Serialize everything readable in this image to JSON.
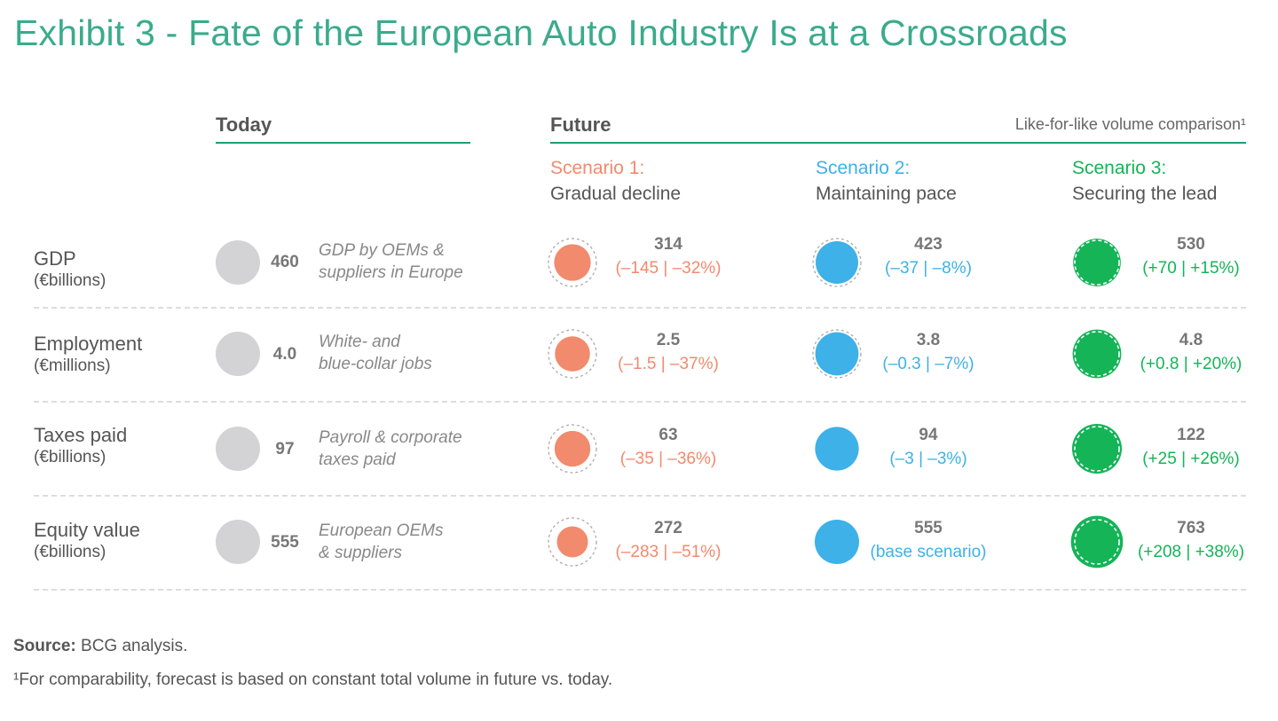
{
  "title": "Exhibit 3 - Fate of the European Auto Industry Is at a Crossroads",
  "headers": {
    "today": "Today",
    "future": "Future",
    "comparison_note": "Like-for-like volume comparison¹"
  },
  "scenarios": [
    {
      "label": "Scenario 1:",
      "name": "Gradual decline",
      "color": "#f28a6d"
    },
    {
      "label": "Scenario 2:",
      "name": "Maintaining pace",
      "color": "#3db1e8"
    },
    {
      "label": "Scenario 3:",
      "name": "Securing the lead",
      "color": "#14b457"
    }
  ],
  "colors": {
    "today_bubble": "#d3d3d5",
    "title": "#3bab8c",
    "rule": "#1b9e76"
  },
  "chart_data": {
    "type": "bubble-table",
    "metrics": [
      {
        "name": "GDP",
        "unit": "(€billions)",
        "today": {
          "value": "460",
          "desc_line1": "GDP by OEMs &",
          "desc_line2": "suppliers in Europe"
        },
        "scenarios": [
          {
            "value": "314",
            "delta": "(–145 | –32%)"
          },
          {
            "value": "423",
            "delta": "(–37 | –8%)"
          },
          {
            "value": "530",
            "delta": "(+70 | +15%)"
          }
        ]
      },
      {
        "name": "Employment",
        "unit": "(€millions)",
        "today": {
          "value": "4.0",
          "desc_line1": "White- and",
          "desc_line2": "blue-collar jobs"
        },
        "scenarios": [
          {
            "value": "2.5",
            "delta": "(–1.5 | –37%)"
          },
          {
            "value": "3.8",
            "delta": "(–0.3 | –7%)"
          },
          {
            "value": "4.8",
            "delta": "(+0.8 | +20%)"
          }
        ]
      },
      {
        "name": "Taxes paid",
        "unit": "(€billions)",
        "today": {
          "value": "97",
          "desc_line1": "Payroll & corporate",
          "desc_line2": "taxes paid"
        },
        "scenarios": [
          {
            "value": "63",
            "delta": "(–35 | –36%)"
          },
          {
            "value": "94",
            "delta": "(–3 | –3%)"
          },
          {
            "value": "122",
            "delta": "(+25 | +26%)"
          }
        ]
      },
      {
        "name": "Equity value",
        "unit": "(€billions)",
        "today": {
          "value": "555",
          "desc_line1": "European OEMs",
          "desc_line2": "& suppliers"
        },
        "scenarios": [
          {
            "value": "272",
            "delta": "(–283 | –51%)"
          },
          {
            "value": "555",
            "delta": "(base scenario)"
          },
          {
            "value": "763",
            "delta": "(+208 | +38%)"
          }
        ]
      }
    ]
  },
  "source_label": "Source:",
  "source_text": " BCG analysis.",
  "footnote": "¹For comparability, forecast is based on constant total volume in future vs. today."
}
